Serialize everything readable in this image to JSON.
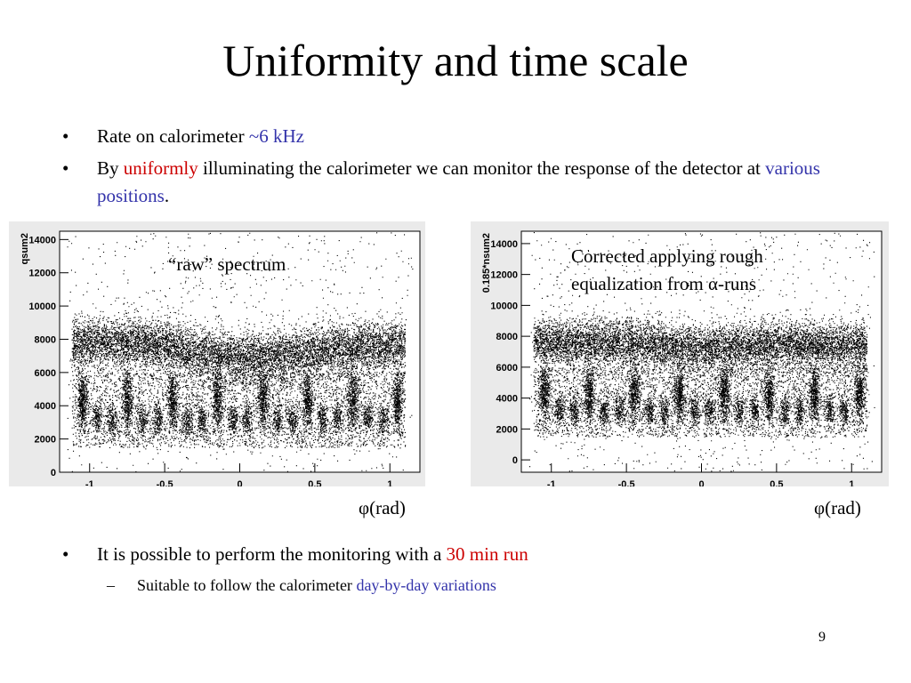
{
  "slide": {
    "title": "Uniformity and time scale",
    "number": "9"
  },
  "bullets_top": [
    {
      "parts": [
        {
          "text": "Rate on calorimeter ",
          "color": "black"
        },
        {
          "text": "~6 kHz",
          "color": "blue"
        }
      ]
    },
    {
      "parts": [
        {
          "text": "By ",
          "color": "black"
        },
        {
          "text": "uniformly",
          "color": "red"
        },
        {
          "text": " illuminating the calorimeter we can monitor the response of the detector at ",
          "color": "black"
        },
        {
          "text": "various positions",
          "color": "blue"
        },
        {
          "text": ".",
          "color": "black"
        }
      ]
    }
  ],
  "plots": {
    "left": {
      "label": "“raw” spectrum",
      "ylabel": "qsum2",
      "xlabel": "φ(rad)",
      "yticks": [
        "0",
        "2000",
        "4000",
        "6000",
        "8000",
        "10000",
        "12000",
        "14000"
      ],
      "xticks": [
        "-1",
        "-0.5",
        "0",
        "0.5",
        "1"
      ]
    },
    "right": {
      "label": "Corrected applying rough equalization from α-runs",
      "label_line1": "Corrected applying rough",
      "label_line2": "equalization from α-runs",
      "ylabel": "0.185*nsum2",
      "xlabel": "φ(rad)",
      "yticks": [
        "0",
        "2000",
        "4000",
        "6000",
        "8000",
        "10000",
        "12000",
        "14000"
      ],
      "xticks": [
        "-1",
        "-0.5",
        "0",
        "0.5",
        "1"
      ]
    }
  },
  "chart_data": [
    {
      "type": "scatter",
      "title": "“raw” spectrum",
      "xlabel": "φ(rad)",
      "ylabel": "qsum2",
      "xlim": [
        -1.2,
        1.2
      ],
      "ylim": [
        0,
        14500
      ],
      "grid": false,
      "band_center": [
        [
          -1.1,
          8200
        ],
        [
          -0.8,
          8200
        ],
        [
          -0.5,
          8000
        ],
        [
          -0.3,
          7600
        ],
        [
          0.0,
          7200
        ],
        [
          0.3,
          7400
        ],
        [
          0.6,
          7800
        ],
        [
          0.9,
          7900
        ],
        [
          1.1,
          8000
        ]
      ],
      "clusters_phi": [
        -1.05,
        -0.95,
        -0.85,
        -0.75,
        -0.65,
        -0.55,
        -0.45,
        -0.35,
        -0.25,
        -0.15,
        -0.05,
        0.05,
        0.15,
        0.25,
        0.35,
        0.45,
        0.55,
        0.65,
        0.75,
        0.85,
        0.95,
        1.05
      ]
    },
    {
      "type": "scatter",
      "title": "Corrected applying rough equalization from α-runs",
      "xlabel": "φ(rad)",
      "ylabel": "0.185*nsum2",
      "xlim": [
        -1.2,
        1.2
      ],
      "ylim": [
        -800,
        14800
      ],
      "grid": false,
      "band_center": [
        [
          -1.1,
          8000
        ],
        [
          -0.5,
          8000
        ],
        [
          0.0,
          7600
        ],
        [
          0.5,
          7900
        ],
        [
          1.1,
          7700
        ]
      ],
      "clusters_phi": [
        -1.05,
        -0.95,
        -0.85,
        -0.75,
        -0.65,
        -0.55,
        -0.45,
        -0.35,
        -0.25,
        -0.15,
        -0.05,
        0.05,
        0.15,
        0.25,
        0.35,
        0.45,
        0.55,
        0.65,
        0.75,
        0.85,
        0.95,
        1.05
      ]
    }
  ],
  "bullets_bottom": [
    {
      "parts": [
        {
          "text": "It is possible to perform the monitoring with a ",
          "color": "black"
        },
        {
          "text": "30 min run",
          "color": "red"
        }
      ]
    }
  ],
  "sub_bullets": [
    {
      "parts": [
        {
          "text": "Suitable to follow the calorimeter ",
          "color": "black"
        },
        {
          "text": "day-by-day variations",
          "color": "blue"
        }
      ]
    }
  ],
  "colors": {
    "blue": "#3333aa",
    "red": "#cc0000",
    "plot_bg": "#eaeaea"
  }
}
